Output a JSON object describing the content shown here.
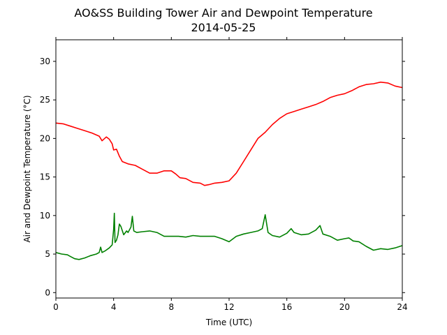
{
  "chart_data": {
    "type": "line",
    "title": "AO&SS Building Tower Air and Dewpoint Temperature",
    "subtitle": "2014-05-25",
    "xlabel": "Time (UTC)",
    "ylabel": "Air and Dewpoint Temperature (°C)",
    "xlim": [
      0,
      24
    ],
    "ylim": [
      -0.7,
      32.8
    ],
    "xticks": [
      0,
      4,
      8,
      12,
      16,
      20,
      24
    ],
    "yticks": [
      0,
      5,
      10,
      15,
      20,
      25,
      30
    ],
    "grid": false,
    "legend": "none",
    "series": [
      {
        "color": "#ff0000",
        "x": [
          0,
          0.5,
          1,
          1.5,
          2,
          2.5,
          3,
          3.2,
          3.5,
          3.7,
          3.9,
          4.0,
          4.2,
          4.4,
          4.6,
          5,
          5.5,
          6,
          6.5,
          7,
          7.5,
          8,
          8.3,
          8.6,
          9,
          9.5,
          10,
          10.3,
          10.6,
          11,
          11.5,
          12,
          12.5,
          13,
          13.5,
          14,
          14.5,
          15,
          15.5,
          16,
          16.5,
          17,
          17.5,
          18,
          18.5,
          19,
          19.5,
          20,
          20.5,
          21,
          21.5,
          22,
          22.5,
          23,
          23.5,
          24
        ],
        "y": [
          22.0,
          21.9,
          21.6,
          21.3,
          21.0,
          20.7,
          20.3,
          19.7,
          20.2,
          19.9,
          19.3,
          18.5,
          18.6,
          17.7,
          17.0,
          16.7,
          16.5,
          16.0,
          15.5,
          15.5,
          15.8,
          15.8,
          15.4,
          14.9,
          14.8,
          14.3,
          14.2,
          13.9,
          14.0,
          14.2,
          14.3,
          14.5,
          15.5,
          17.0,
          18.5,
          20.0,
          20.8,
          21.8,
          22.6,
          23.2,
          23.5,
          23.8,
          24.1,
          24.4,
          24.8,
          25.3,
          25.6,
          25.8,
          26.2,
          26.7,
          27.0,
          27.1,
          27.3,
          27.2,
          26.8,
          26.6
        ]
      },
      {
        "color": "#008000",
        "x": [
          0,
          0.4,
          0.8,
          1.0,
          1.3,
          1.6,
          2.0,
          2.4,
          2.8,
          3.0,
          3.1,
          3.2,
          3.4,
          3.7,
          3.9,
          4.0,
          4.05,
          4.1,
          4.2,
          4.3,
          4.4,
          4.5,
          4.7,
          4.9,
          5.0,
          5.2,
          5.3,
          5.4,
          5.6,
          6.0,
          6.5,
          7.0,
          7.5,
          8.0,
          8.5,
          9.0,
          9.5,
          10.0,
          10.5,
          11.0,
          11.5,
          12.0,
          12.5,
          13.0,
          13.5,
          14.0,
          14.3,
          14.5,
          14.7,
          15.0,
          15.5,
          16.0,
          16.3,
          16.5,
          17.0,
          17.5,
          18.0,
          18.3,
          18.5,
          19.0,
          19.5,
          20.0,
          20.3,
          20.6,
          21.0,
          21.5,
          22.0,
          22.5,
          23.0,
          23.5,
          24.0
        ],
        "y": [
          5.2,
          5.0,
          4.9,
          4.7,
          4.4,
          4.3,
          4.5,
          4.8,
          5.0,
          5.2,
          5.9,
          5.2,
          5.4,
          5.8,
          6.2,
          8.2,
          10.3,
          6.5,
          6.8,
          7.5,
          8.9,
          8.6,
          7.5,
          8.0,
          7.8,
          8.5,
          9.9,
          8.0,
          7.8,
          7.9,
          8.0,
          7.8,
          7.3,
          7.3,
          7.3,
          7.2,
          7.4,
          7.3,
          7.3,
          7.3,
          7.0,
          6.6,
          7.3,
          7.6,
          7.8,
          8.0,
          8.3,
          10.1,
          7.8,
          7.4,
          7.2,
          7.7,
          8.3,
          7.8,
          7.5,
          7.6,
          8.1,
          8.7,
          7.6,
          7.3,
          6.8,
          7.0,
          7.1,
          6.7,
          6.6,
          6.0,
          5.5,
          5.7,
          5.6,
          5.8,
          6.1
        ]
      }
    ]
  }
}
